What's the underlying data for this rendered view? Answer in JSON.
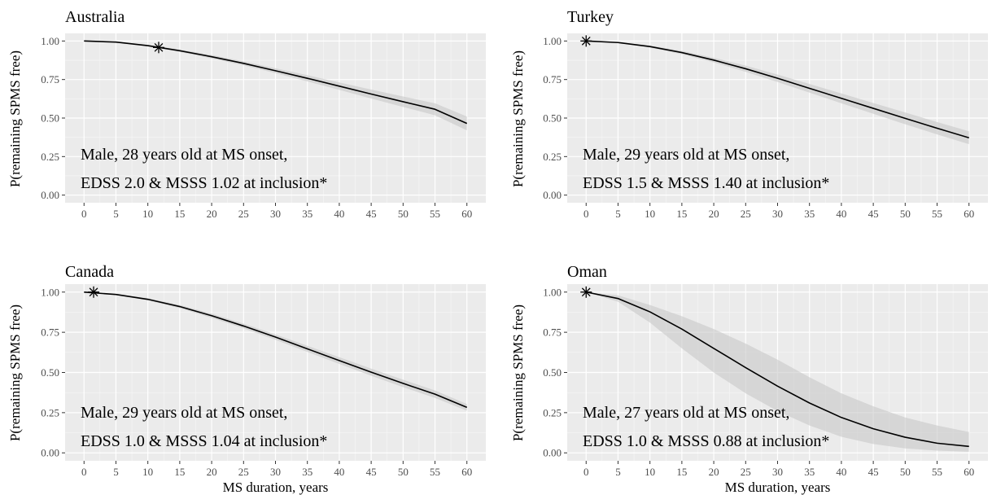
{
  "chart_data": [
    {
      "type": "line",
      "title": "Australia",
      "ylabel": "P(remaining SPMS free)",
      "xlabel": "",
      "xlim": [
        0,
        60
      ],
      "ylim": [
        0,
        1
      ],
      "x_ticks": [
        0,
        5,
        10,
        15,
        20,
        25,
        30,
        35,
        40,
        45,
        50,
        55,
        60
      ],
      "y_ticks": [
        "0.00",
        "0.25",
        "0.50",
        "0.75",
        "1.00"
      ],
      "grid": true,
      "annotation": [
        "Male, 28 years old at MS onset,",
        "EDSS 2.0 & MSSS 1.02 at inclusion*"
      ],
      "marker": {
        "x": 11.7,
        "y": 0.958
      },
      "series": [
        {
          "x": [
            0,
            5,
            10,
            15,
            20,
            25,
            30,
            35,
            40,
            45,
            50,
            55,
            60
          ],
          "y": [
            1.0,
            0.993,
            0.97,
            0.937,
            0.898,
            0.855,
            0.807,
            0.758,
            0.707,
            0.656,
            0.606,
            0.557,
            0.465
          ],
          "lower": [
            1.0,
            0.991,
            0.965,
            0.929,
            0.887,
            0.842,
            0.791,
            0.738,
            0.683,
            0.627,
            0.572,
            0.518,
            0.42
          ],
          "upper": [
            1.0,
            0.995,
            0.975,
            0.945,
            0.909,
            0.868,
            0.823,
            0.778,
            0.731,
            0.685,
            0.64,
            0.596,
            0.51
          ]
        }
      ]
    },
    {
      "type": "line",
      "title": "Turkey",
      "ylabel": "P(remaining SPMS free)",
      "xlabel": "",
      "xlim": [
        0,
        60
      ],
      "ylim": [
        0,
        1
      ],
      "x_ticks": [
        0,
        5,
        10,
        15,
        20,
        25,
        30,
        35,
        40,
        45,
        50,
        55,
        60
      ],
      "y_ticks": [
        "0.00",
        "0.25",
        "0.50",
        "0.75",
        "1.00"
      ],
      "grid": true,
      "annotation": [
        "Male, 29 years old at MS onset,",
        "EDSS 1.5 & MSSS 1.40 at inclusion*"
      ],
      "marker": {
        "x": 0,
        "y": 1.0
      },
      "series": [
        {
          "x": [
            0,
            5,
            10,
            15,
            20,
            25,
            30,
            35,
            40,
            45,
            50,
            55,
            60
          ],
          "y": [
            1.0,
            0.99,
            0.964,
            0.925,
            0.876,
            0.82,
            0.758,
            0.693,
            0.628,
            0.563,
            0.498,
            0.434,
            0.372
          ],
          "lower": [
            1.0,
            0.987,
            0.957,
            0.914,
            0.861,
            0.8,
            0.734,
            0.665,
            0.596,
            0.528,
            0.46,
            0.394,
            0.33
          ],
          "upper": [
            1.0,
            0.993,
            0.971,
            0.936,
            0.891,
            0.84,
            0.782,
            0.721,
            0.66,
            0.598,
            0.536,
            0.474,
            0.414
          ]
        }
      ]
    },
    {
      "type": "line",
      "title": "Canada",
      "ylabel": "P(remaining SPMS free)",
      "xlabel": "MS duration, years",
      "xlim": [
        0,
        60
      ],
      "ylim": [
        0,
        1
      ],
      "x_ticks": [
        0,
        5,
        10,
        15,
        20,
        25,
        30,
        35,
        40,
        45,
        50,
        55,
        60
      ],
      "y_ticks": [
        "0.00",
        "0.25",
        "0.50",
        "0.75",
        "1.00"
      ],
      "grid": true,
      "annotation": [
        "Male, 29 years old at MS onset,",
        "EDSS 1.0 & MSSS 1.04 at inclusion*"
      ],
      "marker": {
        "x": 1.5,
        "y": 1.0
      },
      "series": [
        {
          "x": [
            0,
            5,
            10,
            15,
            20,
            25,
            30,
            35,
            40,
            45,
            50,
            55,
            60
          ],
          "y": [
            1.0,
            0.985,
            0.955,
            0.91,
            0.853,
            0.789,
            0.72,
            0.647,
            0.574,
            0.502,
            0.432,
            0.365,
            0.283
          ],
          "lower": [
            1.0,
            0.982,
            0.948,
            0.9,
            0.84,
            0.774,
            0.703,
            0.628,
            0.553,
            0.48,
            0.409,
            0.342,
            0.262
          ],
          "upper": [
            1.0,
            0.988,
            0.962,
            0.92,
            0.866,
            0.804,
            0.737,
            0.666,
            0.595,
            0.524,
            0.455,
            0.388,
            0.304
          ]
        }
      ]
    },
    {
      "type": "line",
      "title": "Oman",
      "ylabel": "P(remaining SPMS free)",
      "xlabel": "MS duration, years",
      "xlim": [
        0,
        60
      ],
      "ylim": [
        0,
        1
      ],
      "x_ticks": [
        0,
        5,
        10,
        15,
        20,
        25,
        30,
        35,
        40,
        45,
        50,
        55,
        60
      ],
      "y_ticks": [
        "0.00",
        "0.25",
        "0.50",
        "0.75",
        "1.00"
      ],
      "grid": true,
      "annotation": [
        "Male, 27 years old at MS onset,",
        "EDSS 1.0 & MSSS 0.88 at inclusion*"
      ],
      "marker": {
        "x": 0,
        "y": 1.0
      },
      "series": [
        {
          "x": [
            0,
            5,
            10,
            15,
            20,
            25,
            30,
            35,
            40,
            45,
            50,
            55,
            60
          ],
          "y": [
            1.0,
            0.96,
            0.877,
            0.77,
            0.65,
            0.53,
            0.415,
            0.31,
            0.22,
            0.15,
            0.097,
            0.06,
            0.04
          ],
          "lower": [
            1.0,
            0.94,
            0.81,
            0.65,
            0.5,
            0.37,
            0.26,
            0.17,
            0.1,
            0.055,
            0.028,
            0.014,
            0.007
          ],
          "upper": [
            1.0,
            0.98,
            0.92,
            0.85,
            0.77,
            0.68,
            0.58,
            0.47,
            0.37,
            0.29,
            0.22,
            0.17,
            0.13
          ]
        }
      ]
    }
  ]
}
